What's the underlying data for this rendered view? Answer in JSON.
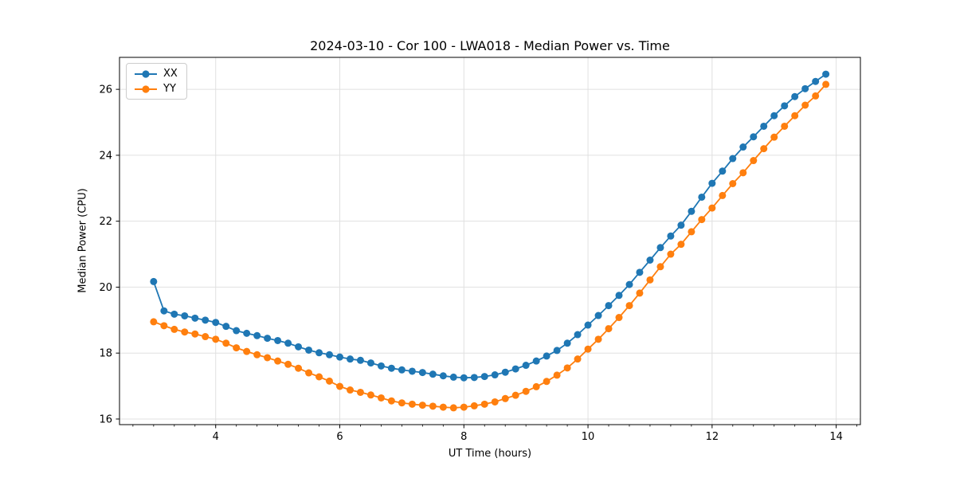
{
  "window": {
    "background": "#ffffff",
    "plot_background": "#ffffff"
  },
  "colors": {
    "series_xx": "#1f77b4",
    "series_yy": "#ff7f0e",
    "grid": "#e0e0e0",
    "spine": "#000000",
    "text": "#000000",
    "legend_border": "#cccccc"
  },
  "chart_data": {
    "type": "line",
    "title": "2024-03-10 - Cor 100 - LWA018 - Median Power vs. Time",
    "xlabel": "UT Time (hours)",
    "ylabel": "Median Power (CPU)",
    "xlim": [
      2.45,
      14.39
    ],
    "ylim": [
      15.83,
      26.97
    ],
    "x_major_ticks": [
      4,
      6,
      8,
      10,
      12,
      14
    ],
    "x_minor_step": 0.33333,
    "y_major_ticks": [
      16,
      18,
      20,
      22,
      24,
      26
    ],
    "grid": "major",
    "legend_position": "upper-left",
    "marker": "circle",
    "x": [
      3.0,
      3.167,
      3.333,
      3.5,
      3.667,
      3.833,
      4.0,
      4.167,
      4.333,
      4.5,
      4.667,
      4.833,
      5.0,
      5.167,
      5.333,
      5.5,
      5.667,
      5.833,
      6.0,
      6.167,
      6.333,
      6.5,
      6.667,
      6.833,
      7.0,
      7.167,
      7.333,
      7.5,
      7.667,
      7.833,
      8.0,
      8.167,
      8.333,
      8.5,
      8.667,
      8.833,
      9.0,
      9.167,
      9.333,
      9.5,
      9.667,
      9.833,
      10.0,
      10.167,
      10.333,
      10.5,
      10.667,
      10.833,
      11.0,
      11.167,
      11.333,
      11.5,
      11.667,
      11.833,
      12.0,
      12.167,
      12.333,
      12.5,
      12.667,
      12.833,
      13.0,
      13.167,
      13.333,
      13.5,
      13.667,
      13.833
    ],
    "series": [
      {
        "name": "XX",
        "color": "#1f77b4",
        "values": [
          20.17,
          19.28,
          19.18,
          19.13,
          19.06,
          19.0,
          18.93,
          18.81,
          18.68,
          18.6,
          18.53,
          18.45,
          18.38,
          18.3,
          18.19,
          18.09,
          18.01,
          17.95,
          17.88,
          17.82,
          17.78,
          17.7,
          17.61,
          17.54,
          17.49,
          17.45,
          17.41,
          17.36,
          17.31,
          17.27,
          17.25,
          17.26,
          17.29,
          17.34,
          17.42,
          17.52,
          17.63,
          17.76,
          17.91,
          18.08,
          18.3,
          18.56,
          18.85,
          19.14,
          19.44,
          19.75,
          20.08,
          20.45,
          20.82,
          21.2,
          21.55,
          21.88,
          22.3,
          22.73,
          23.15,
          23.52,
          23.9,
          24.25,
          24.56,
          24.88,
          25.2,
          25.5,
          25.78,
          26.02,
          26.24,
          26.46
        ]
      },
      {
        "name": "YY",
        "color": "#ff7f0e",
        "values": [
          18.95,
          18.83,
          18.72,
          18.64,
          18.58,
          18.5,
          18.42,
          18.3,
          18.16,
          18.05,
          17.95,
          17.86,
          17.76,
          17.66,
          17.54,
          17.4,
          17.28,
          17.15,
          16.99,
          16.88,
          16.81,
          16.73,
          16.64,
          16.55,
          16.49,
          16.45,
          16.42,
          16.39,
          16.36,
          16.34,
          16.36,
          16.4,
          16.45,
          16.52,
          16.62,
          16.72,
          16.84,
          16.98,
          17.14,
          17.33,
          17.55,
          17.82,
          18.12,
          18.42,
          18.74,
          19.08,
          19.44,
          19.82,
          20.22,
          20.62,
          21.0,
          21.3,
          21.68,
          22.05,
          22.4,
          22.78,
          23.14,
          23.47,
          23.84,
          24.2,
          24.55,
          24.88,
          25.2,
          25.52,
          25.8,
          26.15
        ]
      }
    ]
  }
}
